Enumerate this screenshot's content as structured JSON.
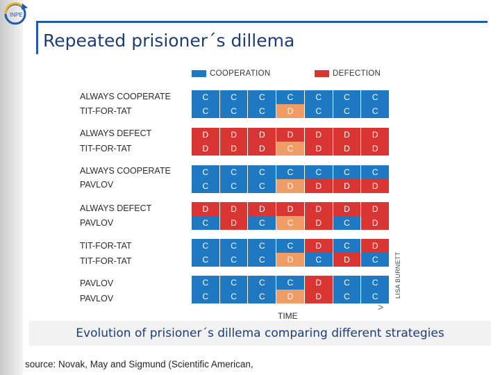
{
  "title": "Repeated prisioner´s dillema",
  "logo_text": "INPE",
  "legend": [
    {
      "label": "COOPERATION",
      "color": "#1f78c2"
    },
    {
      "label": "DEFECTION",
      "color": "#d93533"
    }
  ],
  "pairs": [
    {
      "rows": [
        {
          "label": "ALWAYS COOPERATE",
          "cells": [
            "C",
            "C",
            "C",
            "C",
            "C",
            "C",
            "C"
          ]
        },
        {
          "label": "TIT-FOR-TAT",
          "cells": [
            "C",
            "C",
            "C",
            "D",
            "C",
            "C",
            "C"
          ]
        }
      ]
    },
    {
      "rows": [
        {
          "label": "ALWAYS DEFECT",
          "cells": [
            "D",
            "D",
            "D",
            "D",
            "D",
            "D",
            "D"
          ]
        },
        {
          "label": "TIT-FOR-TAT",
          "cells": [
            "D",
            "D",
            "D",
            "C",
            "D",
            "D",
            "D"
          ]
        }
      ]
    },
    {
      "rows": [
        {
          "label": "ALWAYS COOPERATE",
          "cells": [
            "C",
            "C",
            "C",
            "C",
            "C",
            "C",
            "C"
          ]
        },
        {
          "label": "PAVLOV",
          "cells": [
            "C",
            "C",
            "C",
            "D",
            "D",
            "D",
            "D"
          ]
        }
      ]
    },
    {
      "rows": [
        {
          "label": "ALWAYS DEFECT",
          "cells": [
            "D",
            "D",
            "D",
            "D",
            "D",
            "D",
            "D"
          ]
        },
        {
          "label": "PAVLOV",
          "cells": [
            "C",
            "D",
            "C",
            "C",
            "D",
            "C",
            "D"
          ]
        }
      ]
    },
    {
      "rows": [
        {
          "label": "TIT-FOR-TAT",
          "cells": [
            "C",
            "C",
            "C",
            "C",
            "D",
            "C",
            "D"
          ]
        },
        {
          "label": "TIT-FOR-TAT",
          "cells": [
            "C",
            "C",
            "C",
            "D",
            "C",
            "D",
            "C"
          ]
        }
      ]
    },
    {
      "rows": [
        {
          "label": "PAVLOV",
          "cells": [
            "C",
            "C",
            "C",
            "C",
            "D",
            "C",
            "C"
          ]
        },
        {
          "label": "PAVLOV",
          "cells": [
            "C",
            "C",
            "C",
            "D",
            "D",
            "C",
            "C"
          ]
        }
      ]
    }
  ],
  "time_label": "TIME",
  "time_arrow": ">",
  "credit": "LISA BURNETT",
  "caption": "Evolution of prisioner´s dillema comparing different strategies",
  "source": "source: Novak, May and Sigmund (Scientific American,"
}
